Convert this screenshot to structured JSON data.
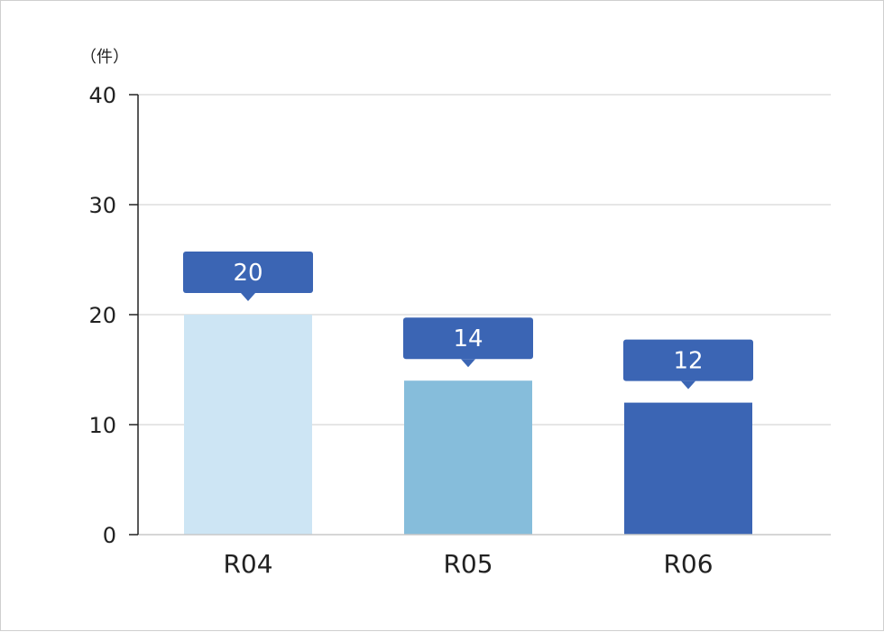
{
  "chart_data": {
    "type": "bar",
    "unit_label": "（件）",
    "categories": [
      "R04",
      "R05",
      "R06"
    ],
    "values": [
      20,
      14,
      12
    ],
    "ylim": [
      0,
      40
    ],
    "yticks": [
      "0",
      "10",
      "20",
      "30",
      "40"
    ],
    "grid": true,
    "legend": "none",
    "bar_colors": [
      "#cde5f4",
      "#86bddb",
      "#3b65b4"
    ],
    "label_box_color": "#3b65b4",
    "gridline_color": "#d6d6d6",
    "axis_color": "#222222"
  }
}
